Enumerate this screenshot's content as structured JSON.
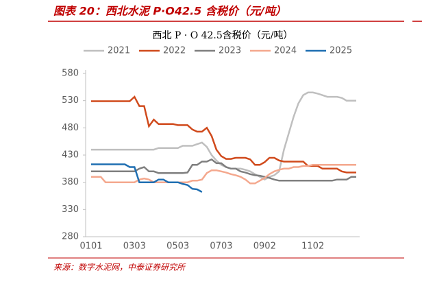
{
  "header": {
    "title": "图表 20：西北水泥 P·O42.5 含税价（元/吨）"
  },
  "chart_data": {
    "type": "line",
    "title": "西北 P · O 42.5含税价（元/吨）",
    "categories": [
      "0101",
      null,
      null,
      null,
      null,
      null,
      null,
      null,
      null,
      "0303",
      null,
      null,
      null,
      null,
      null,
      null,
      null,
      null,
      "0503",
      null,
      null,
      null,
      null,
      null,
      null,
      null,
      null,
      "0703",
      null,
      null,
      null,
      null,
      null,
      null,
      null,
      null,
      "0902",
      null,
      null,
      null,
      null,
      null,
      null,
      null,
      null,
      null,
      "1102",
      null,
      null,
      null,
      null,
      null,
      null,
      null,
      null,
      null
    ],
    "ylim": [
      280,
      580
    ],
    "yticks": [
      280,
      330,
      380,
      430,
      480,
      530,
      580
    ],
    "legend": "top",
    "series": [
      {
        "name": "2021",
        "color": "#bfbfbf",
        "values": [
          440,
          440,
          440,
          440,
          440,
          440,
          440,
          440,
          440,
          440,
          440,
          440,
          440,
          440,
          443,
          443,
          443,
          443,
          443,
          447,
          447,
          447,
          450,
          453,
          445,
          430,
          420,
          412,
          408,
          405,
          405,
          405,
          403,
          400,
          395,
          390,
          385,
          390,
          393,
          400,
          440,
          470,
          500,
          525,
          540,
          545,
          545,
          543,
          540,
          537,
          537,
          537,
          535,
          530,
          530,
          530
        ]
      },
      {
        "name": "2022",
        "color": "#d04a1c",
        "values": [
          529,
          529,
          529,
          529,
          529,
          529,
          529,
          529,
          529,
          537,
          520,
          520,
          483,
          495,
          487,
          487,
          487,
          487,
          485,
          485,
          485,
          477,
          473,
          473,
          480,
          465,
          440,
          428,
          423,
          423,
          425,
          425,
          425,
          422,
          412,
          412,
          417,
          425,
          425,
          420,
          418,
          418,
          418,
          418,
          418,
          410,
          410,
          410,
          405,
          405,
          405,
          405,
          400,
          398,
          398,
          398
        ]
      },
      {
        "name": "2023",
        "color": "#7f7f7f",
        "values": [
          400,
          400,
          400,
          400,
          400,
          400,
          400,
          400,
          400,
          400,
          405,
          408,
          400,
          400,
          397,
          397,
          397,
          397,
          397,
          397,
          398,
          412,
          412,
          418,
          418,
          422,
          415,
          415,
          408,
          405,
          405,
          400,
          398,
          395,
          393,
          392,
          390,
          388,
          385,
          383,
          383,
          383,
          383,
          383,
          383,
          383,
          383,
          383,
          383,
          383,
          383,
          385,
          385,
          385,
          390,
          390
        ]
      },
      {
        "name": "2024",
        "color": "#f4a88e",
        "values": [
          390,
          390,
          390,
          380,
          380,
          380,
          380,
          380,
          380,
          380,
          385,
          387,
          385,
          380,
          380,
          380,
          380,
          380,
          380,
          380,
          380,
          383,
          383,
          385,
          397,
          402,
          402,
          400,
          398,
          395,
          393,
          390,
          385,
          378,
          378,
          383,
          388,
          395,
          400,
          403,
          405,
          405,
          408,
          408,
          410,
          410,
          412,
          412,
          412,
          412,
          412,
          412,
          412,
          412,
          412,
          412
        ]
      },
      {
        "name": "2025",
        "color": "#1f6fb2",
        "values": [
          413,
          413,
          413,
          413,
          413,
          413,
          413,
          413,
          408,
          408,
          380,
          380,
          380,
          380,
          385,
          385,
          380,
          380,
          380,
          377,
          375,
          368,
          367,
          362,
          null,
          null,
          null,
          null,
          null,
          null,
          null,
          null,
          null,
          null,
          null,
          null,
          null,
          null,
          null,
          null,
          null,
          null,
          null,
          null,
          null,
          null,
          null,
          null,
          null,
          null,
          null,
          null,
          null,
          null,
          null,
          null
        ]
      }
    ]
  },
  "source": "来源：数字水泥网，中泰证券研究所"
}
